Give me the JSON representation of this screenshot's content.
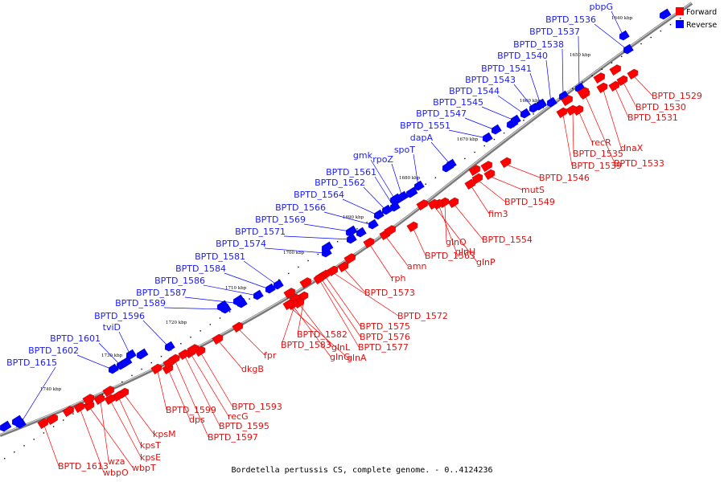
{
  "caption": "Bordetella pertussis CS, complete genome. - 0..4124236",
  "legend": {
    "forward": {
      "label": "Forward",
      "color": "#ff0000"
    },
    "reverse": {
      "label": "Reverse",
      "color": "#0000ff"
    }
  },
  "kbp_ticks": [
    "1640 kbp",
    "1650 kbp",
    "1660 kbp",
    "1670 kbp",
    "1680 kbp",
    "1690 kbp",
    "1700 kbp",
    "1710 kbp",
    "1720 kbp",
    "1730 kbp",
    "1740 kbp"
  ],
  "reverse_genes": [
    "pbpG",
    "BPTD_1536",
    "BPTD_1537",
    "BPTD_1538",
    "BPTD_1540",
    "BPTD_1541",
    "BPTD_1543",
    "BPTD_1544",
    "BPTD_1545",
    "BPTD_1547",
    "BPTD_1551",
    "dapA",
    "spoT",
    "rpoZ",
    "gmk",
    "BPTD_1561",
    "BPTD_1562",
    "BPTD_1564",
    "BPTD_1566",
    "BPTD_1569",
    "BPTD_1571",
    "BPTD_1574",
    "BPTD_1581",
    "BPTD_1584",
    "BPTD_1586",
    "BPTD_1587",
    "BPTD_1589",
    "BPTD_1596",
    "tviD",
    "BPTD_1601",
    "BPTD_1602",
    "BPTD_1615"
  ],
  "forward_genes": [
    "BPTD_1529",
    "BPTD_1530",
    "BPTD_1531",
    "dnaX",
    "BPTD_1533",
    "recR",
    "BPTD_1535",
    "BPTD_1539",
    "BPTD_1546",
    "mutS",
    "BPTD_1549",
    "fim3",
    "BPTD_1554",
    "glnQ",
    "glnH",
    "glnP",
    "BPTD_1563",
    "amn",
    "rph",
    "BPTD_1573",
    "BPTD_1572",
    "BPTD_1575",
    "BPTD_1576",
    "BPTD_1577",
    "BPTD_1582",
    "BPTD_1583",
    "glnL",
    "glnG",
    "glnA",
    "fpr",
    "dkgB",
    "BPTD_1593",
    "recG",
    "BPTD_1595",
    "BPTD_1597",
    "BPTD_1599",
    "dps",
    "kpsM",
    "kpsT",
    "kpsE",
    "wza",
    "wbpT",
    "wbpO",
    "BPTD_1613"
  ]
}
